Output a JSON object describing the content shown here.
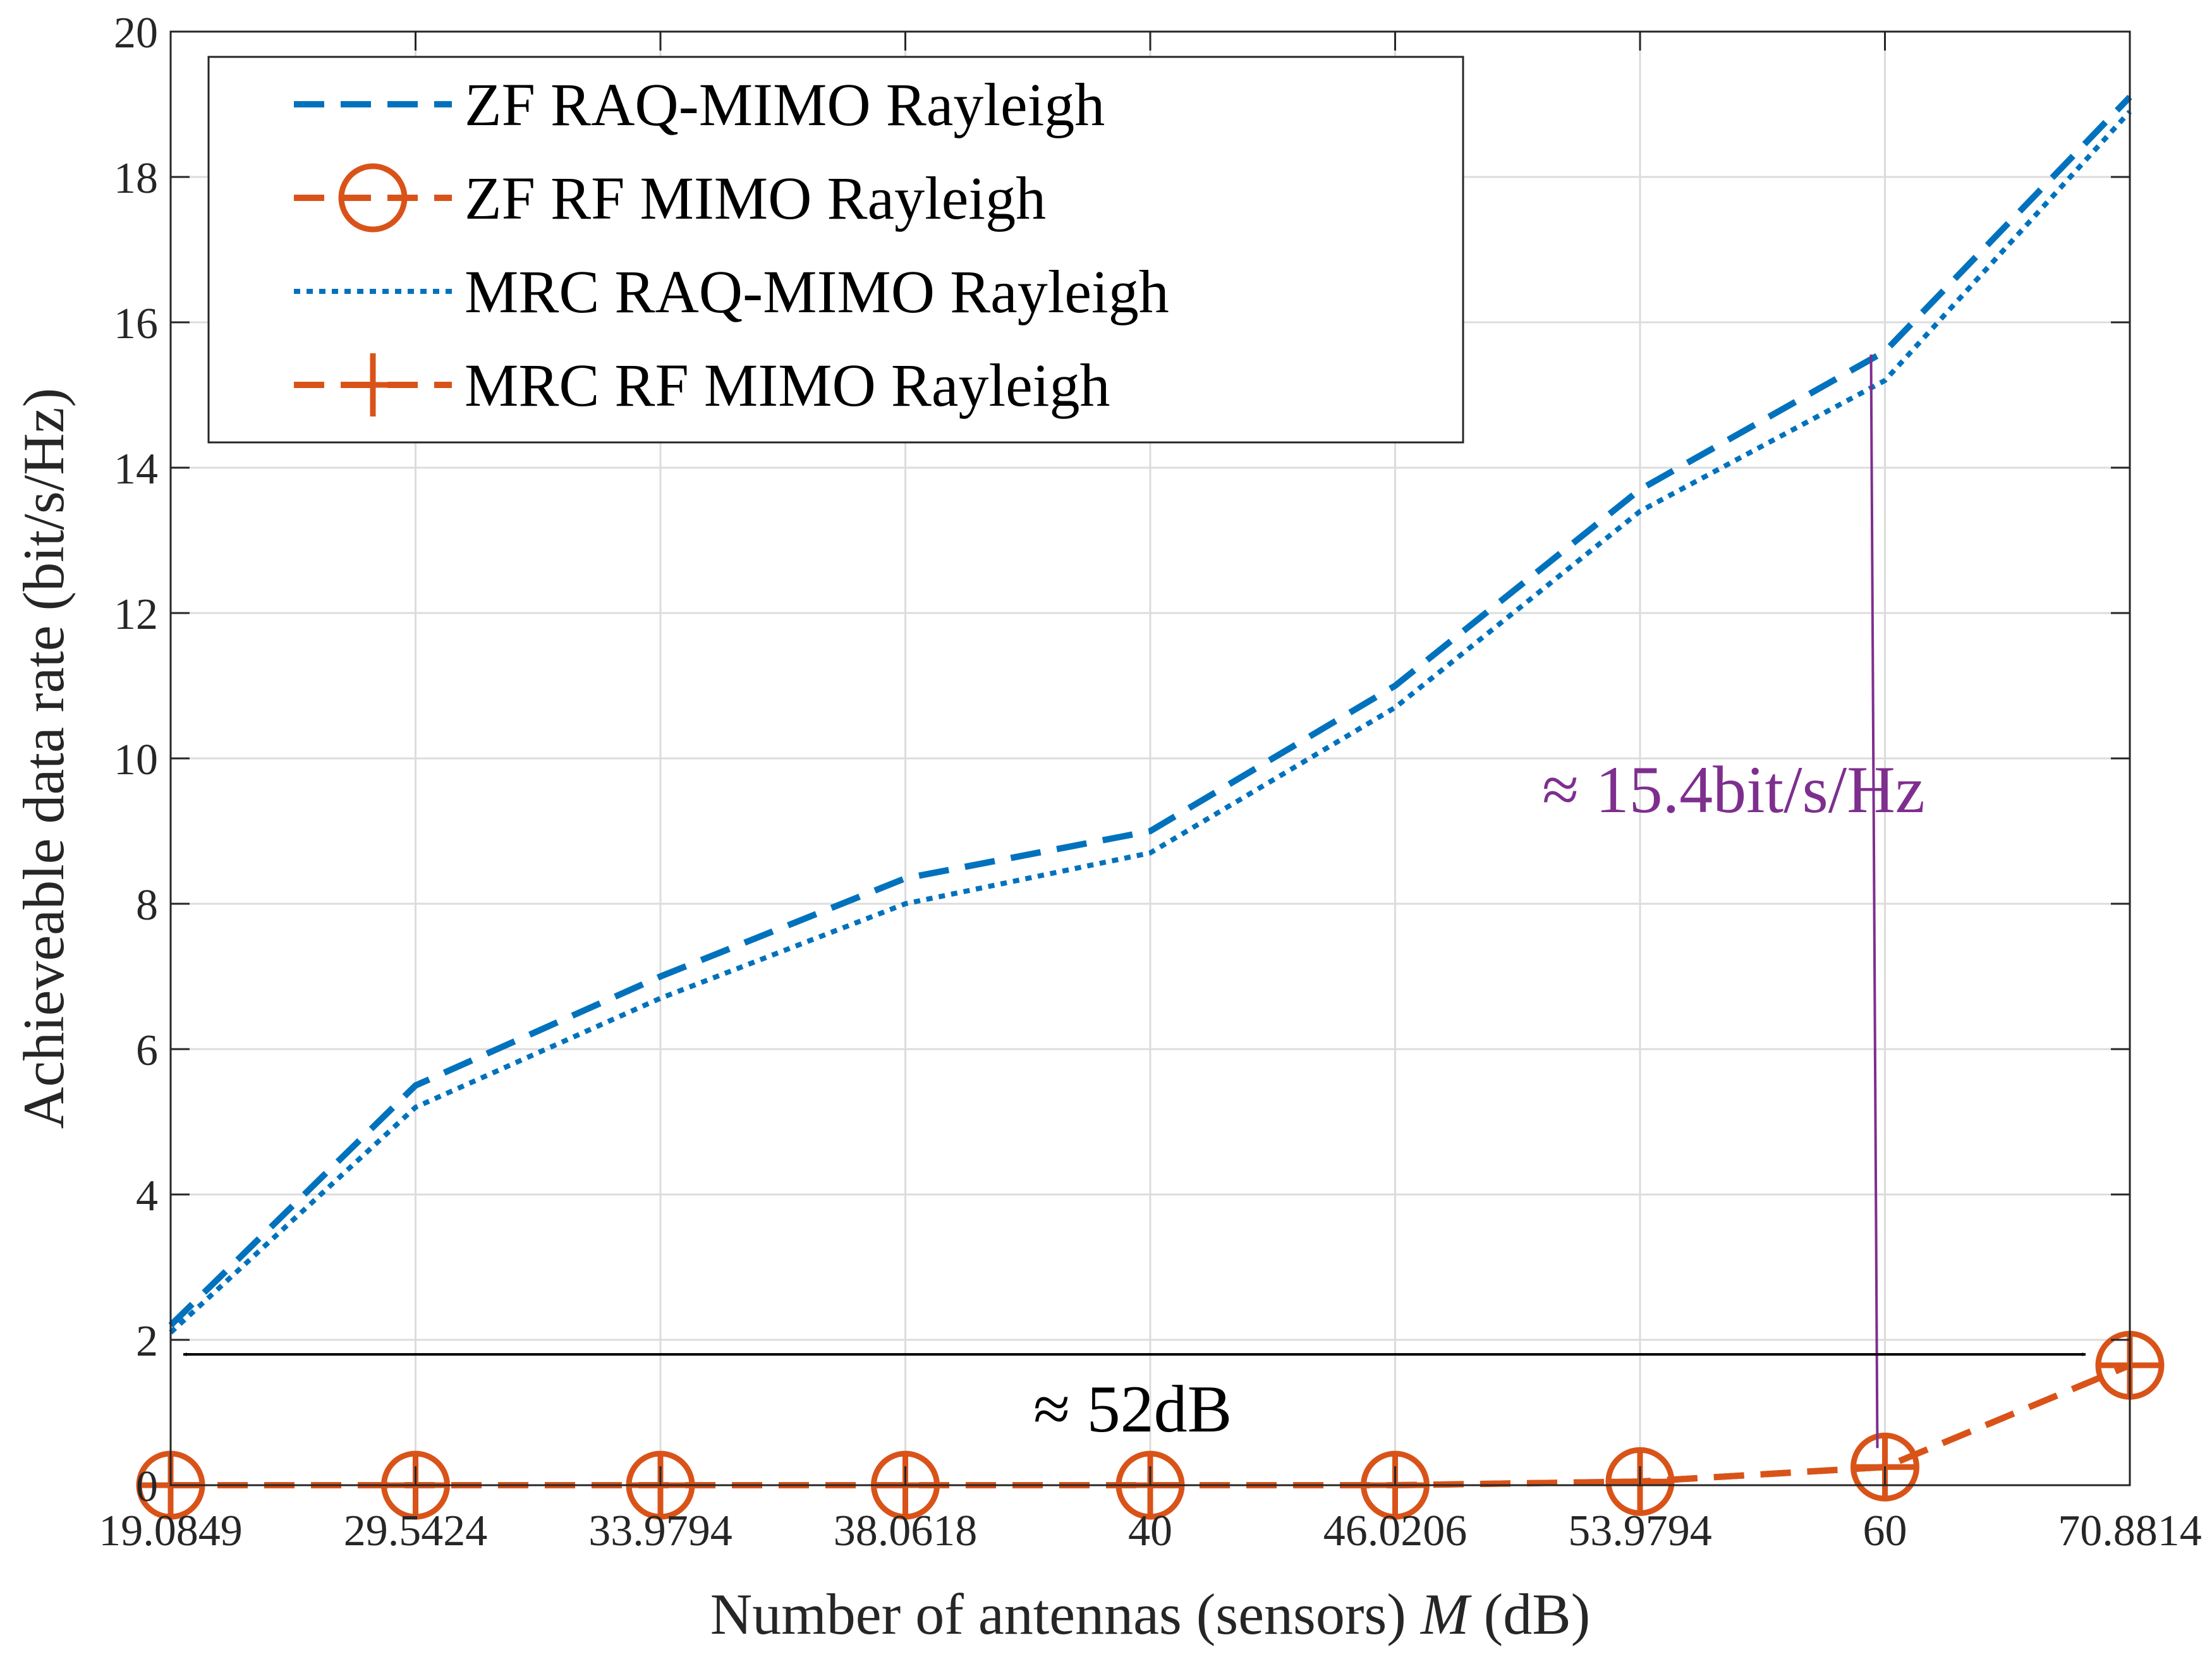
{
  "chart_data": {
    "type": "line",
    "title": "",
    "xlabel": "Number of antennas (sensors)",
    "xlabel_var": "M",
    "xlabel_unit": "(dB)",
    "ylabel": "Achieveable data rate (bit/s/Hz)",
    "categories": [
      "19.0849",
      "29.5424",
      "33.9794",
      "38.0618",
      "40",
      "46.0206",
      "53.9794",
      "60",
      "70.8814"
    ],
    "ylim": [
      0,
      20
    ],
    "yticks": [
      0,
      2,
      4,
      6,
      8,
      10,
      12,
      14,
      16,
      18,
      20
    ],
    "grid": true,
    "legend_position": "top-left",
    "series": [
      {
        "name": "ZF RAQ-MIMO Rayleigh",
        "style": "dashed",
        "marker": "none",
        "color": "#0072BD",
        "values": [
          2.2,
          5.5,
          7.0,
          8.35,
          9.0,
          11.0,
          13.7,
          15.6,
          19.1
        ]
      },
      {
        "name": "ZF RF MIMO Rayleigh",
        "style": "dashed",
        "marker": "circle",
        "color": "#D95319",
        "values": [
          0,
          0,
          0,
          0,
          0,
          0,
          0.05,
          0.25,
          1.65
        ]
      },
      {
        "name": "MRC RAQ-MIMO Rayleigh",
        "style": "dotted",
        "marker": "none",
        "color": "#0072BD",
        "values": [
          2.1,
          5.2,
          6.7,
          8.0,
          8.7,
          10.7,
          13.4,
          15.2,
          18.9
        ]
      },
      {
        "name": "MRC RF MIMO Rayleigh",
        "style": "dashed",
        "marker": "plus",
        "color": "#D95319",
        "values": [
          0,
          0,
          0,
          0,
          0,
          0,
          0.05,
          0.25,
          1.65
        ]
      }
    ],
    "annotations": [
      {
        "text": "≈ 15.4bit/s/Hz",
        "color": "#7E2F8E",
        "from": {
          "x": "60",
          "y": 0.25
        },
        "to": {
          "x": "60",
          "y": 15.6
        }
      },
      {
        "text": "≈ 52dB",
        "color": "#000000",
        "from": {
          "x": "19.0849",
          "y": 1.8
        },
        "to": {
          "x": "70.8814",
          "y": 1.8
        }
      }
    ]
  }
}
